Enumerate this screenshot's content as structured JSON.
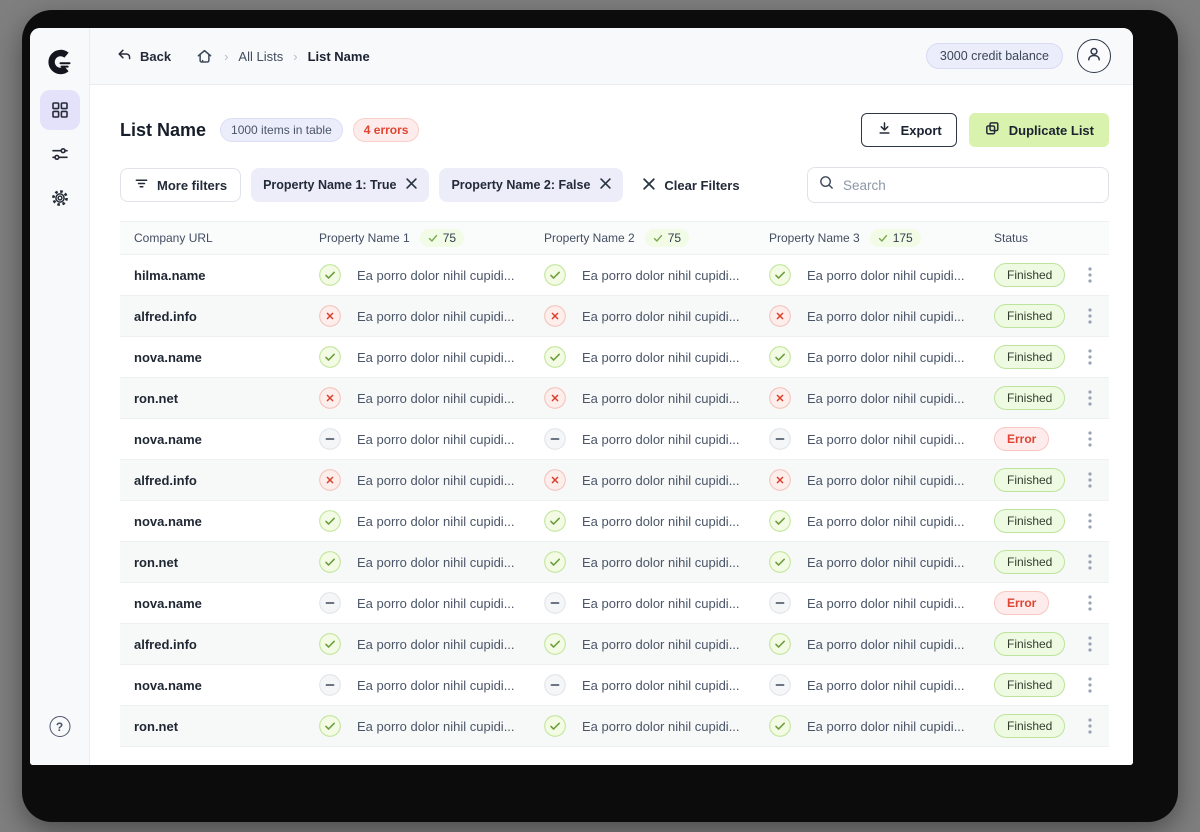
{
  "topbar": {
    "back_label": "Back",
    "breadcrumb": {
      "parent": "All Lists",
      "current": "List Name"
    },
    "credit_balance": "3000 credit balance"
  },
  "sidebar": {
    "help_label": "?"
  },
  "header": {
    "title": "List Name",
    "items_badge": "1000 items in table",
    "errors_badge": "4 errors",
    "export_label": "Export",
    "duplicate_label": "Duplicate List"
  },
  "filters": {
    "more_label": "More filters",
    "chips": [
      "Property Name 1: True",
      "Property Name 2: False"
    ],
    "clear_label": "Clear Filters",
    "search_placeholder": "Search"
  },
  "table": {
    "columns": [
      "Company URL",
      "Property Name 1",
      "Property Name 2",
      "Property Name 3",
      "Status"
    ],
    "column_counts": [
      "75",
      "75",
      "175"
    ],
    "cell_text": "Ea porro dolor nihil cupidi...",
    "rows": [
      {
        "url": "hilma.name",
        "icon": "check",
        "status": "Finished"
      },
      {
        "url": "alfred.info",
        "icon": "cross",
        "status": "Finished"
      },
      {
        "url": "nova.name",
        "icon": "check",
        "status": "Finished"
      },
      {
        "url": "ron.net",
        "icon": "cross",
        "status": "Finished"
      },
      {
        "url": "nova.name",
        "icon": "dash",
        "status": "Error"
      },
      {
        "url": "alfred.info",
        "icon": "cross",
        "status": "Finished"
      },
      {
        "url": "nova.name",
        "icon": "check",
        "status": "Finished"
      },
      {
        "url": "ron.net",
        "icon": "check",
        "status": "Finished"
      },
      {
        "url": "nova.name",
        "icon": "dash",
        "status": "Error"
      },
      {
        "url": "alfred.info",
        "icon": "check",
        "status": "Finished"
      },
      {
        "url": "nova.name",
        "icon": "dash",
        "status": "Finished"
      },
      {
        "url": "ron.net",
        "icon": "check",
        "status": "Finished"
      }
    ]
  },
  "colors": {
    "desktop_gray": "#7f7f7f",
    "frame_black": "#0c0c0c",
    "accent_lavender": "#e4e1fa",
    "accent_green": "#d9f3ae",
    "badge_finished_bg": "#effae3",
    "badge_finished_border": "#bce49c",
    "badge_error_bg": "#fdeceb",
    "badge_error_text": "#df4532",
    "check_green": "#6f9e3f",
    "cross_red": "#d9402c"
  }
}
